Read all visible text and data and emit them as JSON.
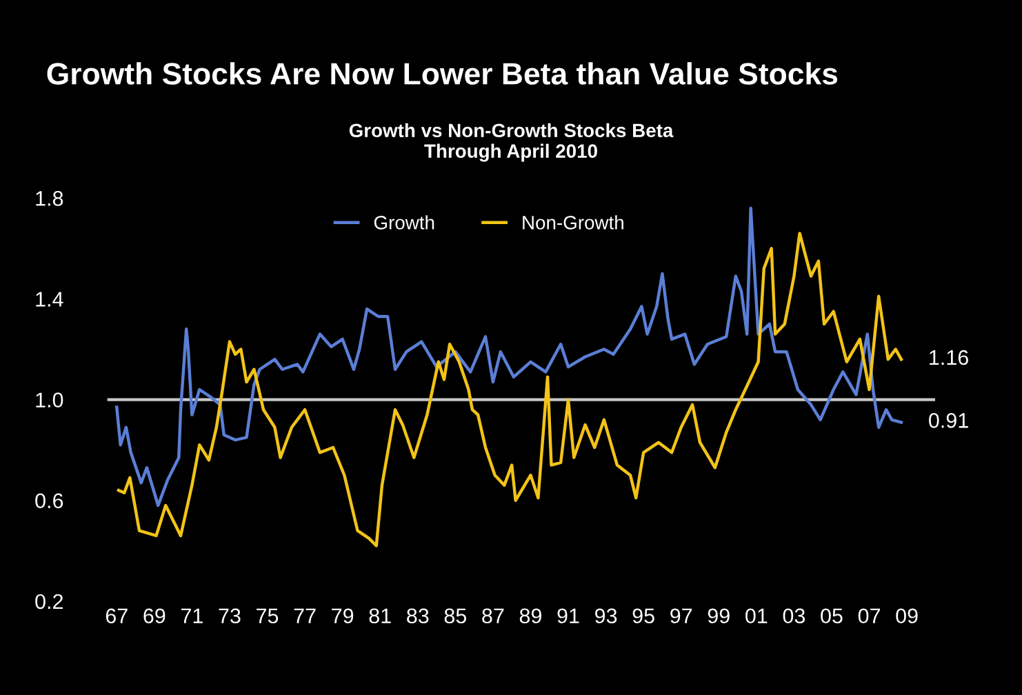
{
  "chart_data": {
    "type": "line",
    "title": "Growth Stocks Are Now Lower Beta than Value Stocks",
    "subtitle": "Growth vs Non-Growth Stocks Beta\nThrough April 2010",
    "series": [
      {
        "name": "Growth",
        "color": "#5b7fd6",
        "x": [
          1967.0,
          1967.2,
          1967.5,
          1967.75,
          1968.3,
          1968.6,
          1969.2,
          1969.7,
          1970.3,
          1970.4,
          1970.7,
          1970.8,
          1971.0,
          1971.4,
          1972.0,
          1972.5,
          1972.7,
          1973.3,
          1973.9,
          1974.3,
          1974.6,
          1975.4,
          1975.8,
          1976.6,
          1976.9,
          1977.8,
          1978.4,
          1979.0,
          1979.6,
          1979.9,
          1980.3,
          1980.9,
          1981.4,
          1981.8,
          1982.4,
          1983.2,
          1984.0,
          1985.0,
          1985.8,
          1986.6,
          1987.0,
          1987.4,
          1988.1,
          1989.0,
          1989.8,
          1990.6,
          1991.0,
          1991.9,
          1992.9,
          1993.4,
          1994.3,
          1994.9,
          1995.2,
          1995.7,
          1996.0,
          1996.3,
          1996.5,
          1997.2,
          1997.7,
          1998.4,
          1999.4,
          1999.9,
          2000.2,
          2000.5,
          2000.7,
          2001.1,
          2001.7,
          2002.0,
          2002.6,
          2003.2,
          2003.9,
          2004.4,
          2005.1,
          2005.6,
          2006.3,
          2006.9,
          2007.2,
          2007.5,
          2007.9,
          2008.2,
          2008.7
        ],
        "values": [
          0.97,
          0.82,
          0.89,
          0.79,
          0.67,
          0.73,
          0.58,
          0.68,
          0.77,
          0.96,
          1.28,
          1.2,
          0.94,
          1.04,
          1.01,
          0.98,
          0.86,
          0.84,
          0.85,
          1.06,
          1.12,
          1.16,
          1.12,
          1.14,
          1.11,
          1.26,
          1.21,
          1.24,
          1.12,
          1.2,
          1.36,
          1.33,
          1.33,
          1.12,
          1.19,
          1.23,
          1.13,
          1.19,
          1.11,
          1.25,
          1.07,
          1.19,
          1.09,
          1.15,
          1.11,
          1.22,
          1.13,
          1.17,
          1.2,
          1.18,
          1.28,
          1.37,
          1.26,
          1.37,
          1.5,
          1.32,
          1.24,
          1.26,
          1.14,
          1.22,
          1.25,
          1.49,
          1.43,
          1.26,
          1.76,
          1.26,
          1.3,
          1.19,
          1.19,
          1.04,
          0.98,
          0.92,
          1.04,
          1.11,
          1.02,
          1.26,
          1.04,
          0.89,
          0.96,
          0.92,
          0.91
        ]
      },
      {
        "name": "Non-Growth",
        "color": "#f2c318",
        "x": [
          1967.1,
          1967.4,
          1967.7,
          1968.2,
          1969.1,
          1969.6,
          1970.0,
          1970.4,
          1971.0,
          1971.4,
          1971.9,
          1972.3,
          1972.6,
          1973.0,
          1973.3,
          1973.6,
          1973.9,
          1974.3,
          1974.8,
          1975.4,
          1975.7,
          1976.3,
          1977.0,
          1977.8,
          1978.5,
          1979.1,
          1979.8,
          1980.4,
          1980.8,
          1981.1,
          1981.8,
          1982.2,
          1982.8,
          1983.5,
          1984.1,
          1984.4,
          1984.7,
          1985.2,
          1985.7,
          1985.9,
          1986.2,
          1986.6,
          1987.1,
          1987.6,
          1988.0,
          1988.2,
          1989.0,
          1989.4,
          1989.9,
          1990.1,
          1990.6,
          1991.0,
          1991.3,
          1991.9,
          1992.4,
          1992.9,
          1993.6,
          1994.3,
          1994.6,
          1995.0,
          1995.8,
          1996.5,
          1997.0,
          1997.6,
          1998.0,
          1998.8,
          1999.4,
          1999.9,
          2000.6,
          2001.1,
          2001.4,
          2001.8,
          2002.0,
          2002.5,
          2003.0,
          2003.3,
          2003.9,
          2004.3,
          2004.6,
          2005.1,
          2005.8,
          2006.5,
          2007.0,
          2007.5,
          2008.0,
          2008.4,
          2008.7
        ],
        "values": [
          0.64,
          0.63,
          0.69,
          0.48,
          0.46,
          0.58,
          0.52,
          0.46,
          0.66,
          0.82,
          0.76,
          0.89,
          1.03,
          1.23,
          1.18,
          1.2,
          1.07,
          1.12,
          0.96,
          0.89,
          0.77,
          0.89,
          0.96,
          0.79,
          0.81,
          0.7,
          0.48,
          0.45,
          0.42,
          0.66,
          0.96,
          0.9,
          0.77,
          0.94,
          1.15,
          1.08,
          1.22,
          1.15,
          1.04,
          0.96,
          0.94,
          0.81,
          0.7,
          0.66,
          0.74,
          0.6,
          0.7,
          0.61,
          1.09,
          0.74,
          0.75,
          1.0,
          0.77,
          0.9,
          0.81,
          0.92,
          0.74,
          0.7,
          0.61,
          0.79,
          0.83,
          0.79,
          0.89,
          0.98,
          0.83,
          0.73,
          0.87,
          0.96,
          1.07,
          1.15,
          1.52,
          1.6,
          1.26,
          1.3,
          1.49,
          1.66,
          1.49,
          1.55,
          1.3,
          1.35,
          1.15,
          1.24,
          1.04,
          1.41,
          1.16,
          1.2,
          1.16
        ]
      }
    ],
    "annotations": [
      {
        "text": "1.16",
        "x": 2008.7,
        "y": 1.16
      },
      {
        "text": "0.91",
        "x": 2008.7,
        "y": 0.91
      }
    ],
    "ref_lines": [
      {
        "axis": "y",
        "value": 1.0,
        "color": "#c8c8c8"
      }
    ],
    "xlim": [
      1966.5,
      2010.5
    ],
    "xticks": [
      {
        "value": 1967,
        "label": "67"
      },
      {
        "value": 1969,
        "label": "69"
      },
      {
        "value": 1971,
        "label": "71"
      },
      {
        "value": 1973,
        "label": "73"
      },
      {
        "value": 1975,
        "label": "75"
      },
      {
        "value": 1977,
        "label": "77"
      },
      {
        "value": 1979,
        "label": "79"
      },
      {
        "value": 1981,
        "label": "81"
      },
      {
        "value": 1983,
        "label": "83"
      },
      {
        "value": 1985,
        "label": "85"
      },
      {
        "value": 1987,
        "label": "87"
      },
      {
        "value": 1989,
        "label": "89"
      },
      {
        "value": 1991,
        "label": "91"
      },
      {
        "value": 1993,
        "label": "93"
      },
      {
        "value": 1995,
        "label": "95"
      },
      {
        "value": 1997,
        "label": "97"
      },
      {
        "value": 1999,
        "label": "99"
      },
      {
        "value": 2001,
        "label": "01"
      },
      {
        "value": 2003,
        "label": "03"
      },
      {
        "value": 2005,
        "label": "05"
      },
      {
        "value": 2007,
        "label": "07"
      },
      {
        "value": 2009,
        "label": "09"
      }
    ],
    "ylim": [
      0.2,
      1.8
    ],
    "yticks": [
      0.2,
      0.6,
      {
        "value": 1.0,
        "label": "1.0"
      },
      1.4,
      1.8
    ],
    "grid": false,
    "legend": "top",
    "marker": "none",
    "line_style": "solid"
  }
}
